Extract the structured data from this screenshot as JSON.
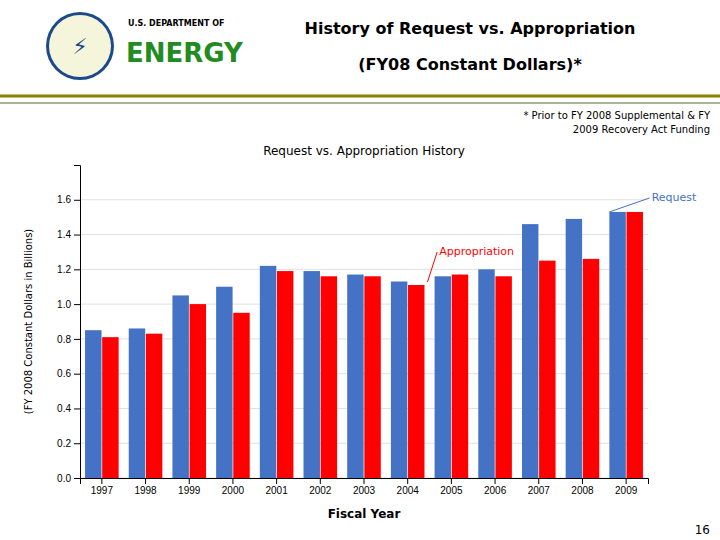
{
  "chart_data": {
    "type": "bar",
    "title": "History of Request vs. Appropriation",
    "subtitle": "(FY08 Constant Dollars)*",
    "annotations": [
      "U.S. DEPARTMENT OF",
      "ENERGY",
      "⚡",
      "* Prior to FY 2008 Supplemental & FY\n2009 Recovery Act Funding",
      "Request vs. Appropriation History",
      "16"
    ],
    "x_label": "Fiscal Year",
    "y_label": "(FY 2008 Constant Dollars in Billions)",
    "categories": [
      "1997",
      "1998",
      "1999",
      "2000",
      "2001",
      "2002",
      "2003",
      "2004",
      "2005",
      "2006",
      "2007",
      "2008",
      "2009"
    ],
    "series": [
      {
        "name": "Request",
        "color": "#4472C4",
        "values": [
          0.85,
          0.86,
          1.05,
          1.1,
          1.22,
          1.19,
          1.17,
          1.13,
          1.16,
          1.2,
          1.46,
          1.49,
          1.53
        ]
      },
      {
        "name": "Appropriation",
        "color": "#FF0000",
        "values": [
          0.81,
          0.83,
          1.0,
          0.95,
          1.19,
          1.16,
          1.16,
          1.11,
          1.17,
          1.16,
          1.25,
          1.26,
          1.53
        ]
      }
    ],
    "ylim": [
      0.0,
      1.8
    ],
    "yticks": [
      {
        "value": 0.0,
        "label": "0.0"
      },
      0.2,
      0.4,
      0.6,
      0.8,
      {
        "value": 1.0,
        "label": "1.0"
      },
      1.2,
      1.4,
      1.6
    ],
    "grid": true
  }
}
